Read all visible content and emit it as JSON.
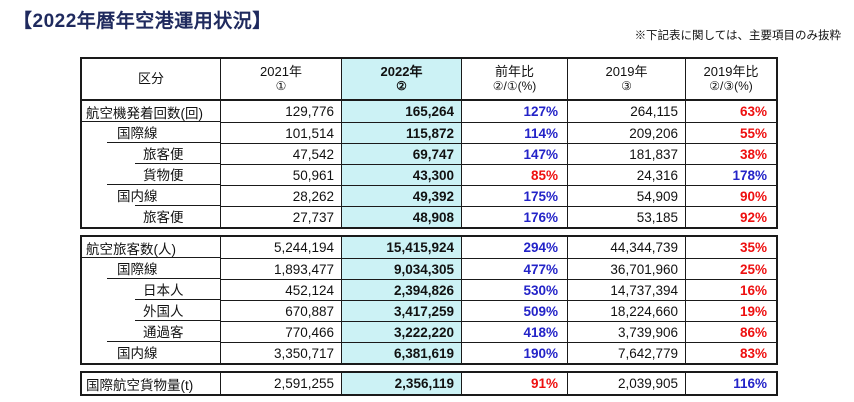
{
  "title": "【2022年暦年空港運用状況】",
  "note": "※下記表に関しては、主要項目のみ抜粋",
  "colors": {
    "highlight_bg": "#ccf2f5",
    "pct_up_blue": "#2323c8",
    "pct_down_red": "#ee0f0f",
    "title_navy": "#1f2a5e"
  },
  "table": {
    "headers": {
      "category": "区分",
      "col_2021": "2021年",
      "col_2021_sub": "①",
      "col_2022": "2022年",
      "col_2022_sub": "②",
      "yoy": "前年比",
      "yoy_sub": "②/①(%)",
      "col_2019": "2019年",
      "col_2019_sub": "③",
      "vs_2019": "2019年比",
      "vs_2019_sub": "②/③(%)"
    },
    "sections": [
      {
        "rows": [
          {
            "label": "航空機発着回数(回)",
            "level": 0,
            "sep": null,
            "v2021": "129,776",
            "v2022": "165,264",
            "yoy": "127%",
            "v2019": "264,115",
            "vs2019": "63%"
          },
          {
            "label": "国際線",
            "level": 1,
            "sep": 0,
            "v2021": "101,514",
            "v2022": "115,872",
            "yoy": "114%",
            "v2019": "209,206",
            "vs2019": "55%"
          },
          {
            "label": "旅客便",
            "level": 2,
            "sep": 1,
            "v2021": "47,542",
            "v2022": "69,747",
            "yoy": "147%",
            "v2019": "181,837",
            "vs2019": "38%"
          },
          {
            "label": "貨物便",
            "level": 2,
            "sep": 2,
            "v2021": "50,961",
            "v2022": "43,300",
            "yoy": "85%",
            "v2019": "24,316",
            "vs2019": "178%"
          },
          {
            "label": "国内線",
            "level": 1,
            "sep": 1,
            "v2021": "28,262",
            "v2022": "49,392",
            "yoy": "175%",
            "v2019": "54,909",
            "vs2019": "90%"
          },
          {
            "label": "旅客便",
            "level": 2,
            "sep": 2,
            "v2021": "27,737",
            "v2022": "48,908",
            "yoy": "176%",
            "v2019": "53,185",
            "vs2019": "92%"
          }
        ]
      },
      {
        "rows": [
          {
            "label": "航空旅客数(人)",
            "level": 0,
            "sep": null,
            "v2021": "5,244,194",
            "v2022": "15,415,924",
            "yoy": "294%",
            "v2019": "44,344,739",
            "vs2019": "35%"
          },
          {
            "label": "国際線",
            "level": 1,
            "sep": 0,
            "v2021": "1,893,477",
            "v2022": "9,034,305",
            "yoy": "477%",
            "v2019": "36,701,960",
            "vs2019": "25%"
          },
          {
            "label": "日本人",
            "level": 2,
            "sep": 1,
            "v2021": "452,124",
            "v2022": "2,394,826",
            "yoy": "530%",
            "v2019": "14,737,394",
            "vs2019": "16%"
          },
          {
            "label": "外国人",
            "level": 2,
            "sep": 2,
            "v2021": "670,887",
            "v2022": "3,417,259",
            "yoy": "509%",
            "v2019": "18,224,660",
            "vs2019": "19%"
          },
          {
            "label": "通過客",
            "level": 2,
            "sep": 2,
            "v2021": "770,466",
            "v2022": "3,222,220",
            "yoy": "418%",
            "v2019": "3,739,906",
            "vs2019": "86%"
          },
          {
            "label": "国内線",
            "level": 1,
            "sep": 1,
            "v2021": "3,350,717",
            "v2022": "6,381,619",
            "yoy": "190%",
            "v2019": "7,642,779",
            "vs2019": "83%"
          }
        ]
      },
      {
        "rows": [
          {
            "label": "国際航空貨物量(t)",
            "level": 0,
            "sep": null,
            "v2021": "2,591,255",
            "v2022": "2,356,119",
            "yoy": "91%",
            "v2019": "2,039,905",
            "vs2019": "116%"
          }
        ]
      }
    ]
  }
}
